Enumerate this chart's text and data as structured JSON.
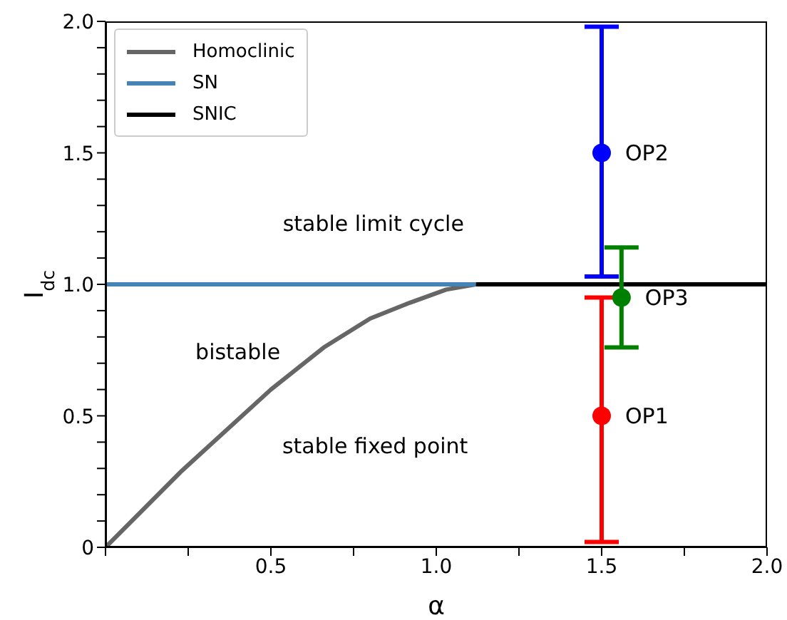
{
  "chart_data": {
    "type": "line",
    "xlabel": "α",
    "ylabel": "I$_{dc}$",
    "xlim": [
      0,
      2
    ],
    "ylim": [
      0,
      2
    ],
    "xticks": [
      {
        "value": 0,
        "label": null
      },
      {
        "value": 0.25,
        "label": null
      },
      0.5,
      {
        "value": 0.75,
        "label": null
      },
      {
        "value": 1,
        "label": "1.0"
      },
      {
        "value": 1.25,
        "label": null
      },
      1.5,
      {
        "value": 1.75,
        "label": null
      },
      {
        "value": 2,
        "label": "2.0"
      }
    ],
    "yticks": [
      0,
      {
        "value": 0.1,
        "label": null
      },
      {
        "value": 0.2,
        "label": null
      },
      {
        "value": 0.3,
        "label": null
      },
      {
        "value": 0.4,
        "label": null
      },
      0.5,
      {
        "value": 0.6,
        "label": null
      },
      {
        "value": 0.7,
        "label": null
      },
      {
        "value": 0.8,
        "label": null
      },
      {
        "value": 0.9,
        "label": null
      },
      {
        "value": 1,
        "label": "1.0"
      },
      {
        "value": 1.1,
        "label": null
      },
      {
        "value": 1.2,
        "label": null
      },
      {
        "value": 1.3,
        "label": null
      },
      {
        "value": 1.4,
        "label": null
      },
      1.5,
      {
        "value": 1.6,
        "label": null
      },
      {
        "value": 1.7,
        "label": null
      },
      {
        "value": 1.8,
        "label": null
      },
      {
        "value": 1.9,
        "label": null
      },
      {
        "value": 2,
        "label": "2.0"
      }
    ],
    "legend": "top left",
    "grid": false,
    "series": [
      {
        "name": "Homoclinic",
        "color": "#666666",
        "x": [
          0,
          0.23,
          0.5,
          0.66,
          0.8,
          0.92,
          1.03,
          1.12
        ],
        "values": [
          0,
          0.29,
          0.6,
          0.76,
          0.87,
          0.93,
          0.98,
          1.0
        ]
      },
      {
        "name": "SN",
        "color": "#4682b4",
        "x": [
          0,
          1.12
        ],
        "values": [
          1,
          1
        ]
      },
      {
        "name": "SNIC",
        "color": "#000000",
        "x": [
          1.12,
          2
        ],
        "values": [
          1,
          1
        ]
      },
      {
        "name": "OP1",
        "type": "scatter",
        "color": "#ff0000",
        "x": [
          1.5
        ],
        "values": [
          0.5
        ],
        "errors": [
          [
            0.02,
            0.95
          ]
        ]
      },
      {
        "name": "OP2",
        "type": "scatter",
        "color": "#0000ff",
        "x": [
          1.5
        ],
        "values": [
          1.5
        ],
        "errors": [
          [
            1.03,
            1.98
          ]
        ]
      },
      {
        "name": "OP3",
        "type": "scatter",
        "color": "#008000",
        "x": [
          1.56
        ],
        "values": [
          0.95
        ],
        "errors": [
          [
            0.76,
            1.14
          ]
        ]
      }
    ],
    "annotations": [
      "stable limit cycle",
      "bistable",
      "stable fixed point"
    ]
  }
}
